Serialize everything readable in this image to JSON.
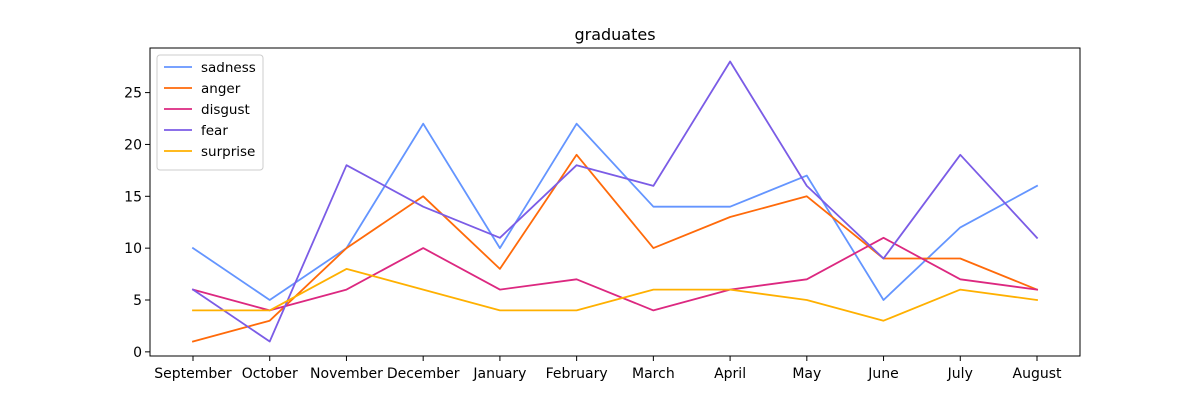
{
  "chart_data": {
    "type": "line",
    "title": "graduates",
    "xlabel": "",
    "ylabel": "",
    "categories": [
      "September",
      "October",
      "November",
      "December",
      "January",
      "February",
      "March",
      "April",
      "May",
      "June",
      "July",
      "August"
    ],
    "ylim": [
      -0.4,
      29.3
    ],
    "yticks": [
      0,
      5,
      10,
      15,
      20,
      25
    ],
    "grid": false,
    "legend_position": "top-left",
    "series": [
      {
        "name": "sadness",
        "color": "#6495ff",
        "values": [
          10,
          5,
          10,
          22,
          10,
          22,
          14,
          14,
          17,
          5,
          12,
          16
        ]
      },
      {
        "name": "anger",
        "color": "#ff6a0a",
        "values": [
          1,
          3,
          10,
          15,
          8,
          19,
          10,
          13,
          15,
          9,
          9,
          6
        ]
      },
      {
        "name": "disgust",
        "color": "#dc2880",
        "values": [
          6,
          4,
          6,
          10,
          6,
          7,
          4,
          6,
          7,
          11,
          7,
          6
        ]
      },
      {
        "name": "fear",
        "color": "#7b5ce6",
        "values": [
          6,
          1,
          18,
          14,
          11,
          18,
          16,
          28,
          16,
          9,
          19,
          11
        ]
      },
      {
        "name": "surprise",
        "color": "#ffb000",
        "values": [
          4,
          4,
          8,
          6,
          4,
          4,
          6,
          6,
          5,
          3,
          6,
          5
        ]
      }
    ]
  }
}
